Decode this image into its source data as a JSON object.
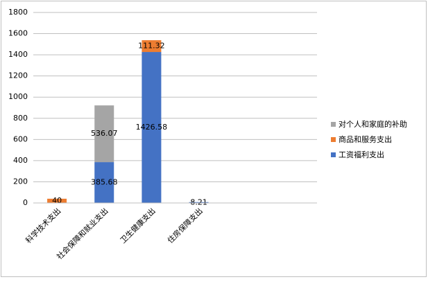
{
  "chart_data": {
    "type": "stacked_bar",
    "categories": [
      "科学技术支出",
      "社会保障和就业支出",
      "卫生健康支出",
      "住房保障支出",
      null,
      null
    ],
    "series": [
      {
        "name": "工资福利支出",
        "color": "#4472c4",
        "values": [
          null,
          385.68,
          1426.58,
          8.21,
          null,
          null
        ]
      },
      {
        "name": "商品和服务支出",
        "color": "#ed7d31",
        "values": [
          40,
          null,
          111.32,
          null,
          null,
          null
        ]
      },
      {
        "name": "对个人和家庭的补助",
        "color": "#a5a5a5",
        "values": [
          null,
          536.07,
          null,
          null,
          null,
          null
        ]
      }
    ],
    "ylim": [
      0,
      1800
    ],
    "yticks": [
      0,
      200,
      400,
      600,
      800,
      1000,
      1200,
      1400,
      1600,
      1800
    ],
    "grid": true,
    "legend": "right"
  }
}
